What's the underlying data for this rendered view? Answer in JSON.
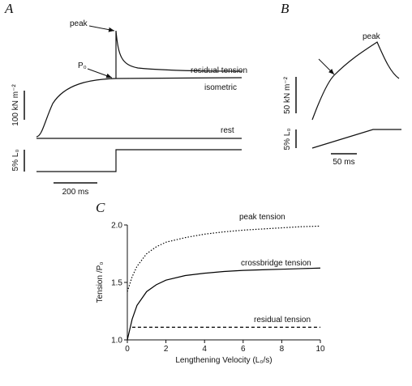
{
  "panel_a": {
    "label": "A",
    "peak": "peak",
    "p0": "P₀",
    "residual": "residual tension",
    "isometric": "isometric",
    "rest": "rest",
    "force_scale": "100 kN m⁻²",
    "length_scale": "5% L₀",
    "time_scale": "200 ms"
  },
  "panel_b": {
    "label": "B",
    "peak": "peak",
    "force_scale": "50 kN m⁻²",
    "length_scale": "5% L₀",
    "time_scale": "50 ms"
  },
  "chart_data": {
    "type": "line",
    "panel_label": "C",
    "x_label": "Lengthening Velocity (L₀/s)",
    "y_label": "Tension /P₀",
    "x": [
      0,
      0.25,
      0.5,
      1,
      1.5,
      2,
      3,
      4,
      5,
      6,
      7,
      8,
      9,
      10
    ],
    "series": [
      {
        "name": "peak tension",
        "color": "#000000",
        "style": "dotted",
        "values": [
          1.42,
          1.55,
          1.64,
          1.75,
          1.81,
          1.85,
          1.89,
          1.92,
          1.94,
          1.955,
          1.965,
          1.975,
          1.985,
          1.99
        ]
      },
      {
        "name": "crossbridge tension",
        "color": "#000000",
        "style": "solid",
        "values": [
          1.0,
          1.18,
          1.3,
          1.42,
          1.48,
          1.52,
          1.56,
          1.58,
          1.595,
          1.605,
          1.61,
          1.615,
          1.62,
          1.625
        ]
      },
      {
        "name": "residual tension",
        "color": "#000000",
        "style": "dashed",
        "values": [
          null,
          1.11,
          1.11,
          1.11,
          1.11,
          1.11,
          1.11,
          1.11,
          1.11,
          1.11,
          1.11,
          1.11,
          1.11,
          1.11
        ]
      }
    ],
    "xlim": [
      0,
      10
    ],
    "xticks": [
      0,
      2,
      4,
      6,
      8,
      10
    ],
    "ylim": [
      1,
      2
    ],
    "yticks": [
      {
        "value": 1,
        "label": "1.0"
      },
      {
        "value": 1.5,
        "label": "1.5"
      },
      {
        "value": 2,
        "label": "2.0"
      }
    ]
  }
}
